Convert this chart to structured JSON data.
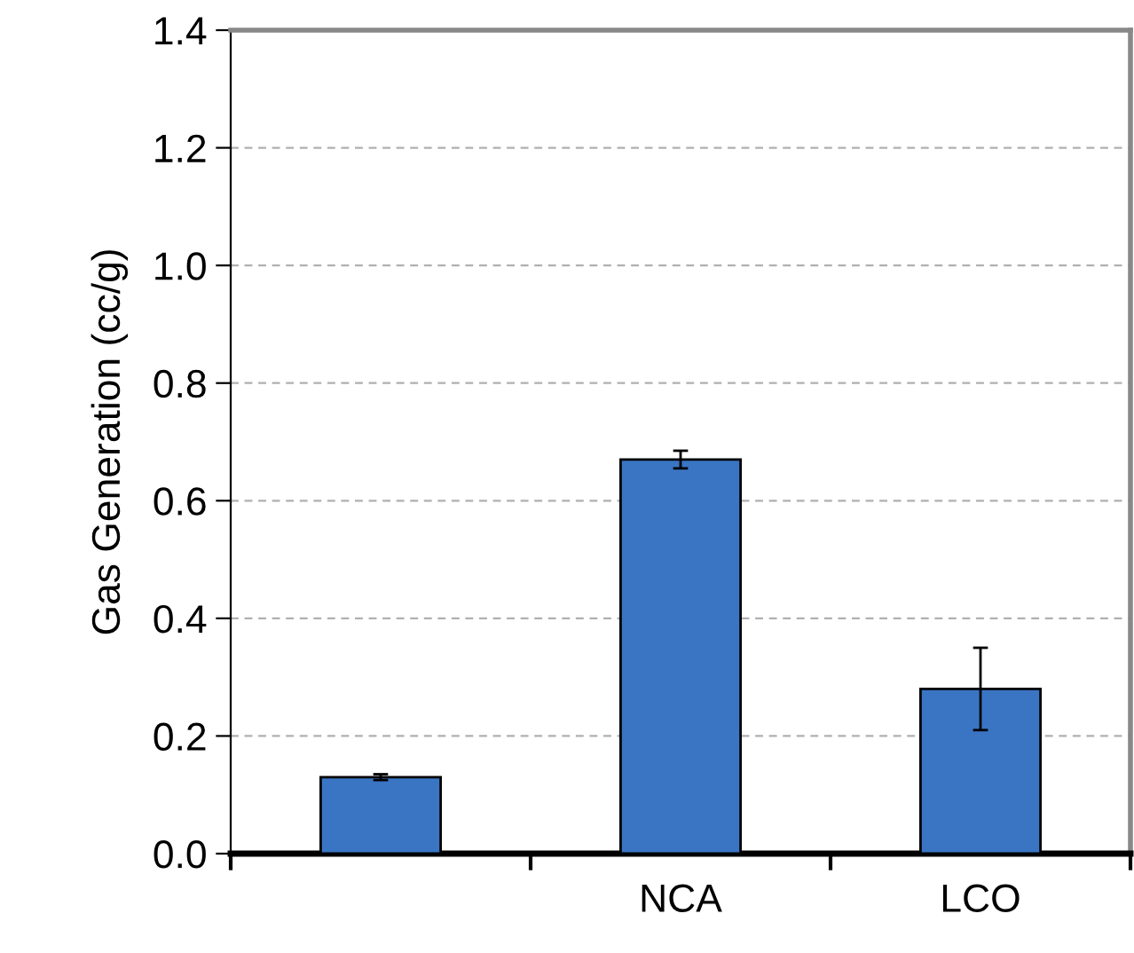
{
  "chart_data": {
    "type": "bar",
    "ylabel": "Gas Generation (cc/g)",
    "categories": [
      null,
      "NCA",
      "LCO"
    ],
    "values": [
      0.13,
      0.67,
      0.28
    ],
    "errors": [
      0.005,
      0.015,
      0.07
    ],
    "color": "#3a75c4",
    "ylim": [
      0,
      1.4
    ],
    "yticks": [
      {
        "value": 0,
        "label": "0.0"
      },
      0.2,
      0.4,
      0.6,
      0.8,
      {
        "value": 1,
        "label": "1.0"
      },
      1.2,
      1.4
    ],
    "grid": "y"
  }
}
